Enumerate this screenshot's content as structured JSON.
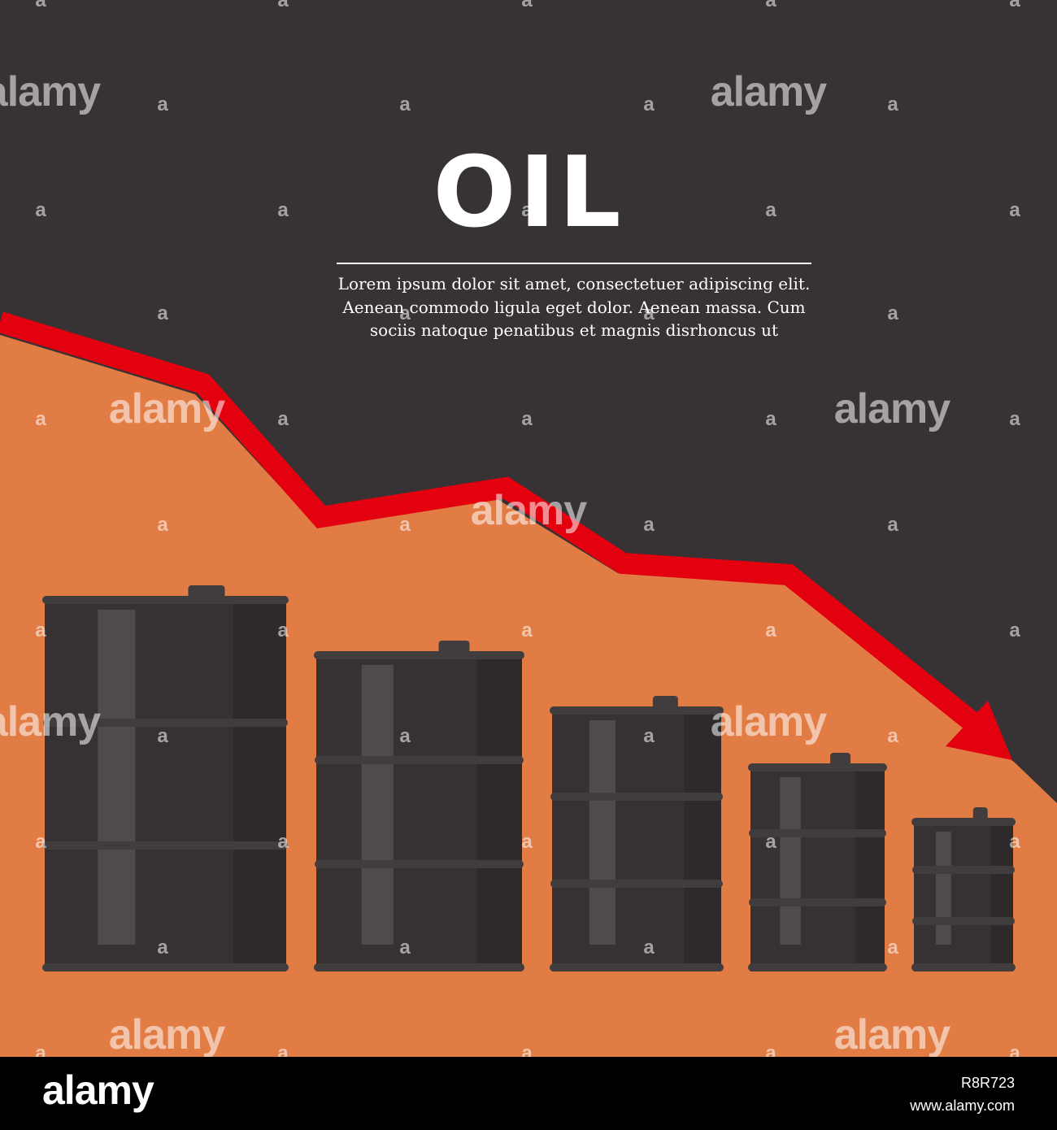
{
  "poster": {
    "title": "OIL",
    "description": "Lorem ipsum dolor sit amet, consectetuer adipiscing elit. Aenean commodo ligula eget dolor. Aenean massa. Cum sociis natoque penatibus et magnis disrhoncus ut"
  },
  "illustration": {
    "barrel_count": 5,
    "trend": "decreasing",
    "arrow_direction": "down-right"
  },
  "watermark": {
    "brand": "alamy",
    "letter": "a"
  },
  "footer": {
    "logo": "alamy",
    "image_id": "R8R723",
    "url": "www.alamy.com"
  },
  "colors": {
    "background_dark": "#373233",
    "area_orange": "#e27c45",
    "arrow_red": "#e3000f",
    "barrel_body": "#363133",
    "barrel_shade": "#2e2a2b",
    "barrel_highlight": "#4f4a4b",
    "barrel_ring": "#413c3d",
    "footer_black": "#000000"
  }
}
